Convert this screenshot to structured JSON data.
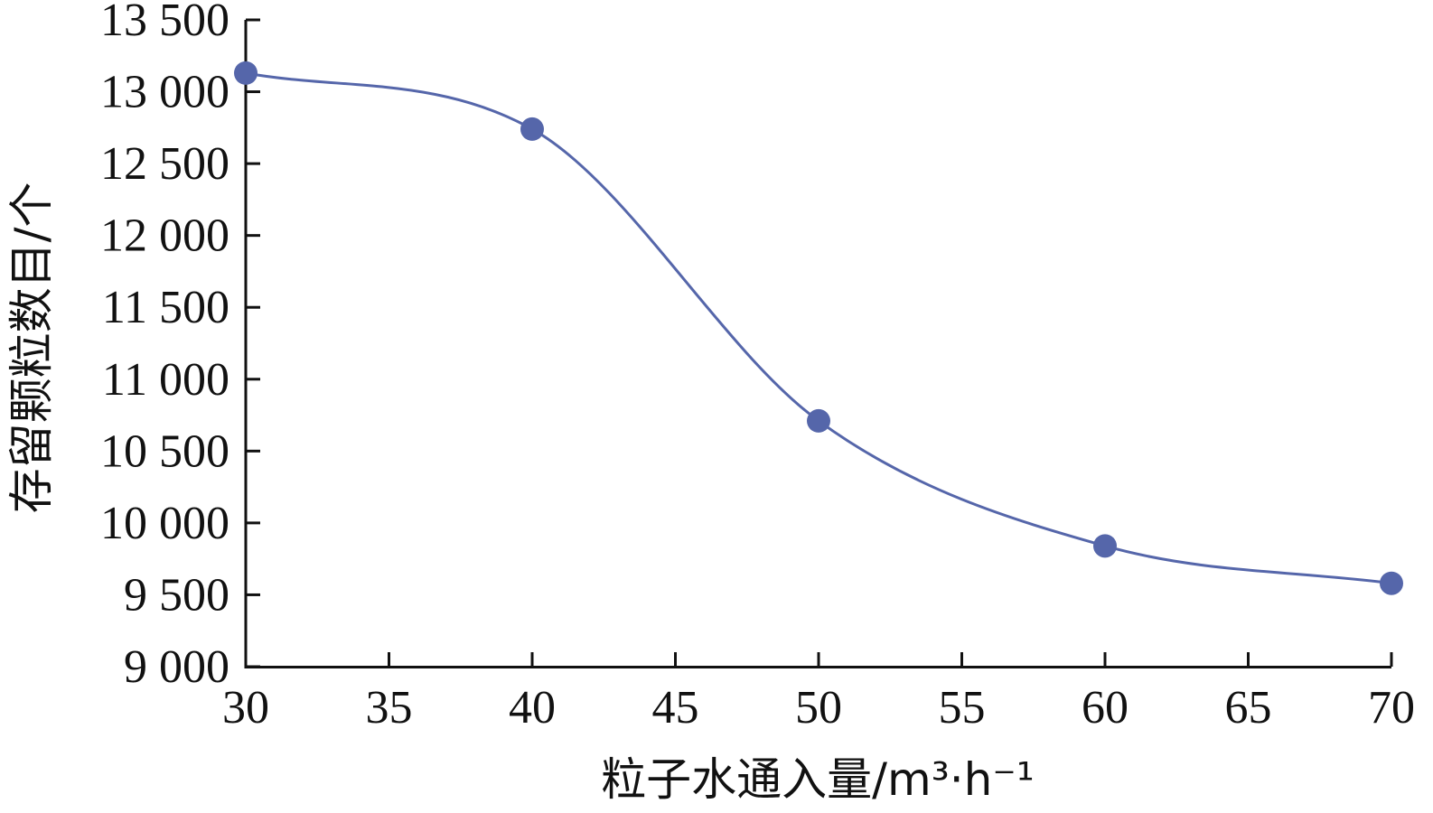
{
  "chart_data": {
    "type": "line",
    "title": "",
    "xlabel": "粒子水通入量/m³·h⁻¹",
    "ylabel": "存留颗粒数目/个",
    "xlim": [
      30,
      70
    ],
    "ylim": [
      9000,
      13500
    ],
    "x_ticks": [
      30,
      35,
      40,
      45,
      50,
      55,
      60,
      65,
      70
    ],
    "x_tick_labels": [
      "30",
      "35",
      "40",
      "45",
      "50",
      "55",
      "60",
      "65",
      "70"
    ],
    "y_ticks": [
      9000,
      9500,
      10000,
      10500,
      11000,
      11500,
      12000,
      12500,
      13000,
      13500
    ],
    "y_tick_labels": [
      "9 000",
      "9 500",
      "10 000",
      "10 500",
      "11 000",
      "11 500",
      "12 000",
      "12 500",
      "13 000",
      "13 500"
    ],
    "grid": false,
    "legend": "none",
    "series": [
      {
        "x": [
          30,
          40,
          50,
          60,
          70
        ],
        "y": [
          13130,
          12740,
          10710,
          9840,
          9580
        ],
        "color": "#5566aa",
        "smooth": true,
        "marker": "circle"
      }
    ]
  }
}
